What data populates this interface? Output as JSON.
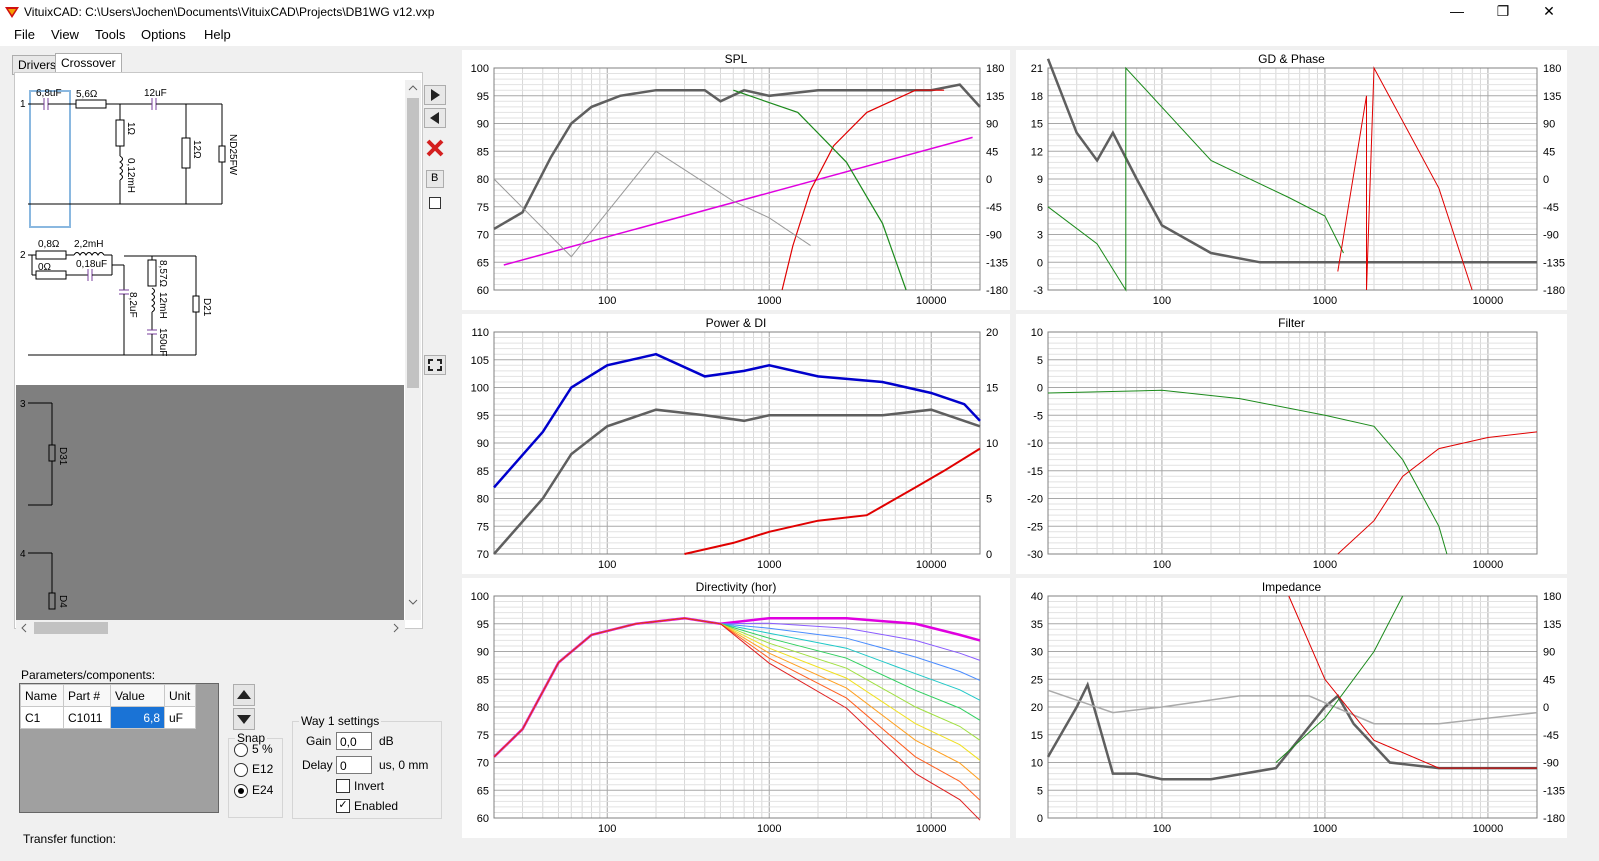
{
  "window": {
    "title": "VituixCAD: C:\\Users\\Jochen\\Documents\\VituixCAD\\Projects\\DB1WG v12.vxp",
    "minimize_glyph": "—",
    "maximize_glyph": "❐",
    "close_glyph": "✕"
  },
  "menu": [
    "File",
    "View",
    "Tools",
    "Options",
    "Help"
  ],
  "tabs": [
    "Drivers",
    "Crossover"
  ],
  "schematic": {
    "way_numbers": [
      "1",
      "2",
      "3",
      "4"
    ],
    "way1": {
      "c1": "6,8uF",
      "r1": "5,6Ω",
      "c2": "12uF",
      "r2": "1Ω",
      "l1": "0,12mH",
      "r3": "12Ω",
      "driver": "ND25FW"
    },
    "way2": {
      "r1": "0,8Ω",
      "l1": "2,2mH",
      "r2": "0Ω",
      "c1": "0,18uF",
      "c2": "8,2uF",
      "r3": "8,57Ω",
      "l2": "12mH",
      "c3": "150uF",
      "driver": "D21"
    },
    "way3": {
      "driver": "D31"
    },
    "way4": {
      "driver": "D4"
    }
  },
  "toolbar": {
    "b_label": "B"
  },
  "params": {
    "label": "Parameters/components:",
    "columns": [
      "Name",
      "Part #",
      "Value",
      "Unit"
    ],
    "rows": [
      [
        "C1",
        "C1011",
        "6,8",
        "uF"
      ]
    ]
  },
  "snap": {
    "title": "Snap",
    "options": [
      "5 %",
      "E12",
      "E24"
    ],
    "selected": "E24"
  },
  "way_settings": {
    "title": "Way 1 settings",
    "gain_label": "Gain",
    "gain_value": "0,0",
    "gain_unit": "dB",
    "delay_label": "Delay",
    "delay_value": "0",
    "delay_unit": "us, 0 mm",
    "invert_label": "Invert",
    "invert": false,
    "enabled_label": "Enabled",
    "enabled": true
  },
  "transfer_label": "Transfer function:",
  "colors": {
    "selection": "#1a73d6",
    "accent_magenta": "#e000e0",
    "blue": "#0000cc",
    "red": "#e00000",
    "green": "#1b8a1b",
    "gray": "#5f5f5f"
  },
  "charts": [
    {
      "title": "SPL",
      "ylim": [
        60,
        100
      ],
      "yticks": [
        "100",
        "95",
        "90",
        "85",
        "80",
        "75",
        "70",
        "65",
        "60"
      ],
      "y2ticks": [
        "180",
        "135",
        "90",
        "45",
        "0",
        "-45",
        "-90",
        "-135",
        "-180"
      ],
      "xticks": [
        "100",
        "1000",
        "10000"
      ]
    },
    {
      "title": "GD & Phase",
      "ylim": [
        -3,
        21
      ],
      "yticks": [
        "21",
        "18",
        "15",
        "12",
        "9",
        "6",
        "3",
        "0",
        "-3"
      ],
      "y2ticks": [
        "180",
        "135",
        "90",
        "45",
        "0",
        "-45",
        "-90",
        "-135",
        "-180"
      ],
      "xticks": [
        "100",
        "1000",
        "10000"
      ]
    },
    {
      "title": "Power & DI",
      "ylim": [
        70,
        110
      ],
      "yticks": [
        "110",
        "105",
        "100",
        "95",
        "90",
        "85",
        "80",
        "75",
        "70"
      ],
      "y2ticks": [
        "20",
        "15",
        "10",
        "5",
        "0"
      ],
      "xticks": [
        "100",
        "1000",
        "10000"
      ]
    },
    {
      "title": "Filter",
      "ylim": [
        -30,
        10
      ],
      "yticks": [
        "10",
        "5",
        "0",
        "-5",
        "-10",
        "-15",
        "-20",
        "-25",
        "-30"
      ],
      "y2ticks": [],
      "xticks": [
        "100",
        "1000",
        "10000"
      ]
    },
    {
      "title": "Directivity (hor)",
      "ylim": [
        60,
        100
      ],
      "yticks": [
        "100",
        "95",
        "90",
        "85",
        "80",
        "75",
        "70",
        "65",
        "60"
      ],
      "y2ticks": [],
      "xticks": [
        "100",
        "1000",
        "10000"
      ]
    },
    {
      "title": "Impedance",
      "ylim": [
        0,
        40
      ],
      "yticks": [
        "40",
        "35",
        "30",
        "25",
        "20",
        "15",
        "10",
        "5",
        "0"
      ],
      "y2ticks": [
        "180",
        "135",
        "90",
        "45",
        "0",
        "-45",
        "-90",
        "-135",
        "-180"
      ],
      "xticks": [
        "100",
        "1000",
        "10000"
      ]
    }
  ]
}
